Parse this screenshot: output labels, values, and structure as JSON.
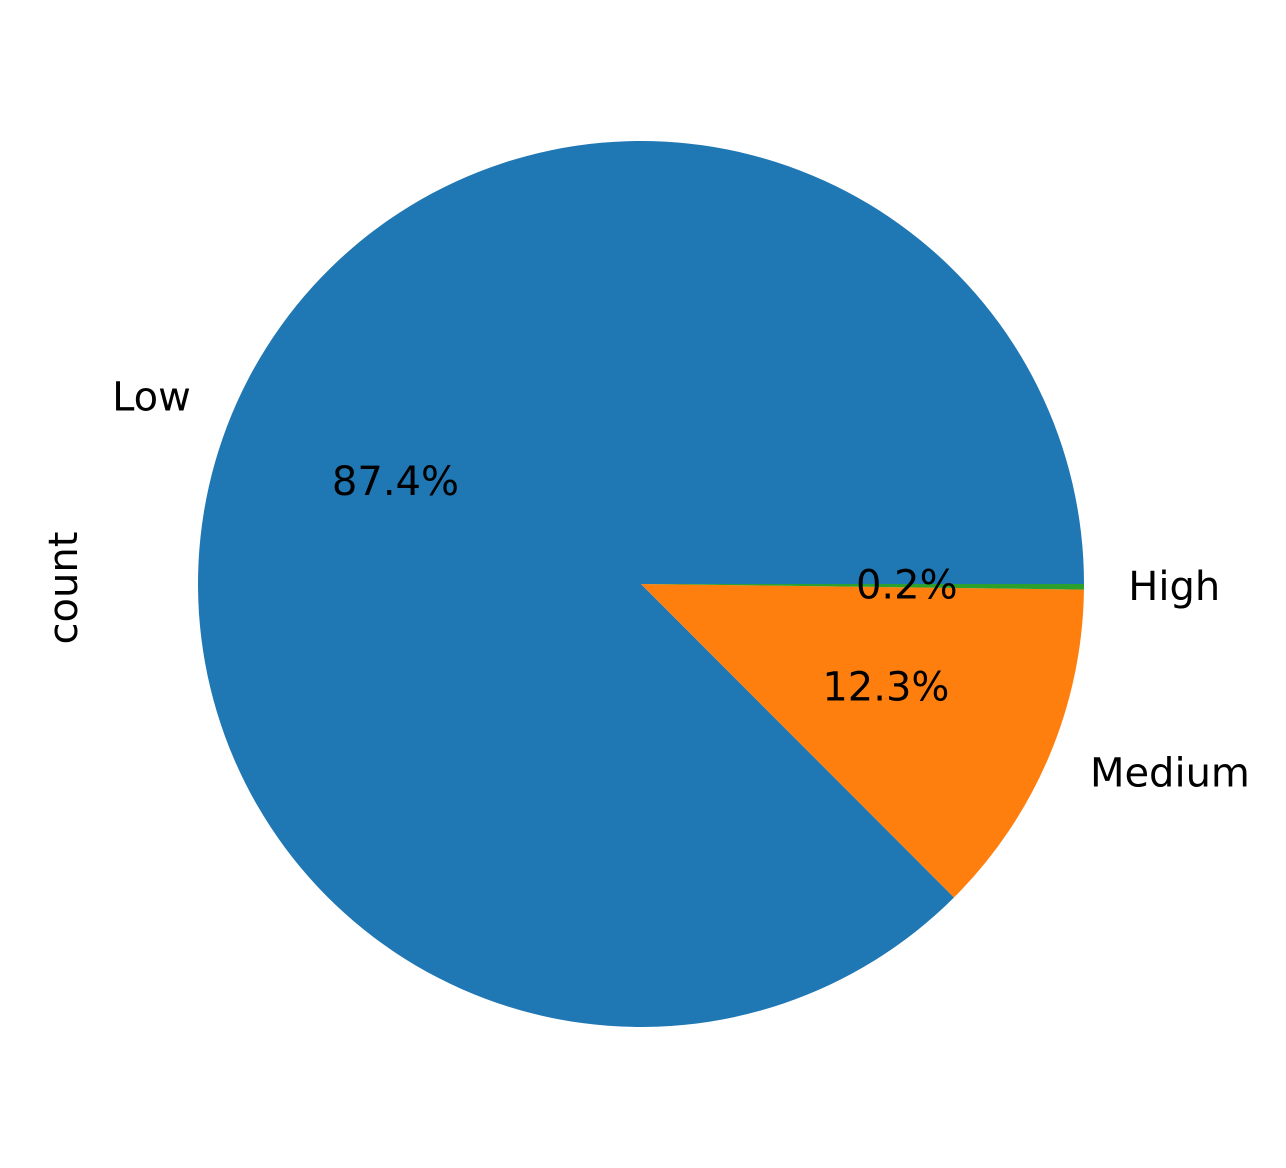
{
  "chart_data": {
    "type": "pie",
    "title": "",
    "ylabel": "count",
    "slices": [
      {
        "label": "Low",
        "percent": 87.4,
        "pct_label": "87.4%",
        "color": "#1f77b4"
      },
      {
        "label": "Medium",
        "percent": 12.3,
        "pct_label": "12.3%",
        "color": "#ff7f0e"
      },
      {
        "label": "High",
        "percent": 0.2,
        "pct_label": "0.2%",
        "color": "#2ca02c"
      }
    ],
    "start_angle_deg": 0,
    "direction": "counterclockwise",
    "legend": "none"
  }
}
